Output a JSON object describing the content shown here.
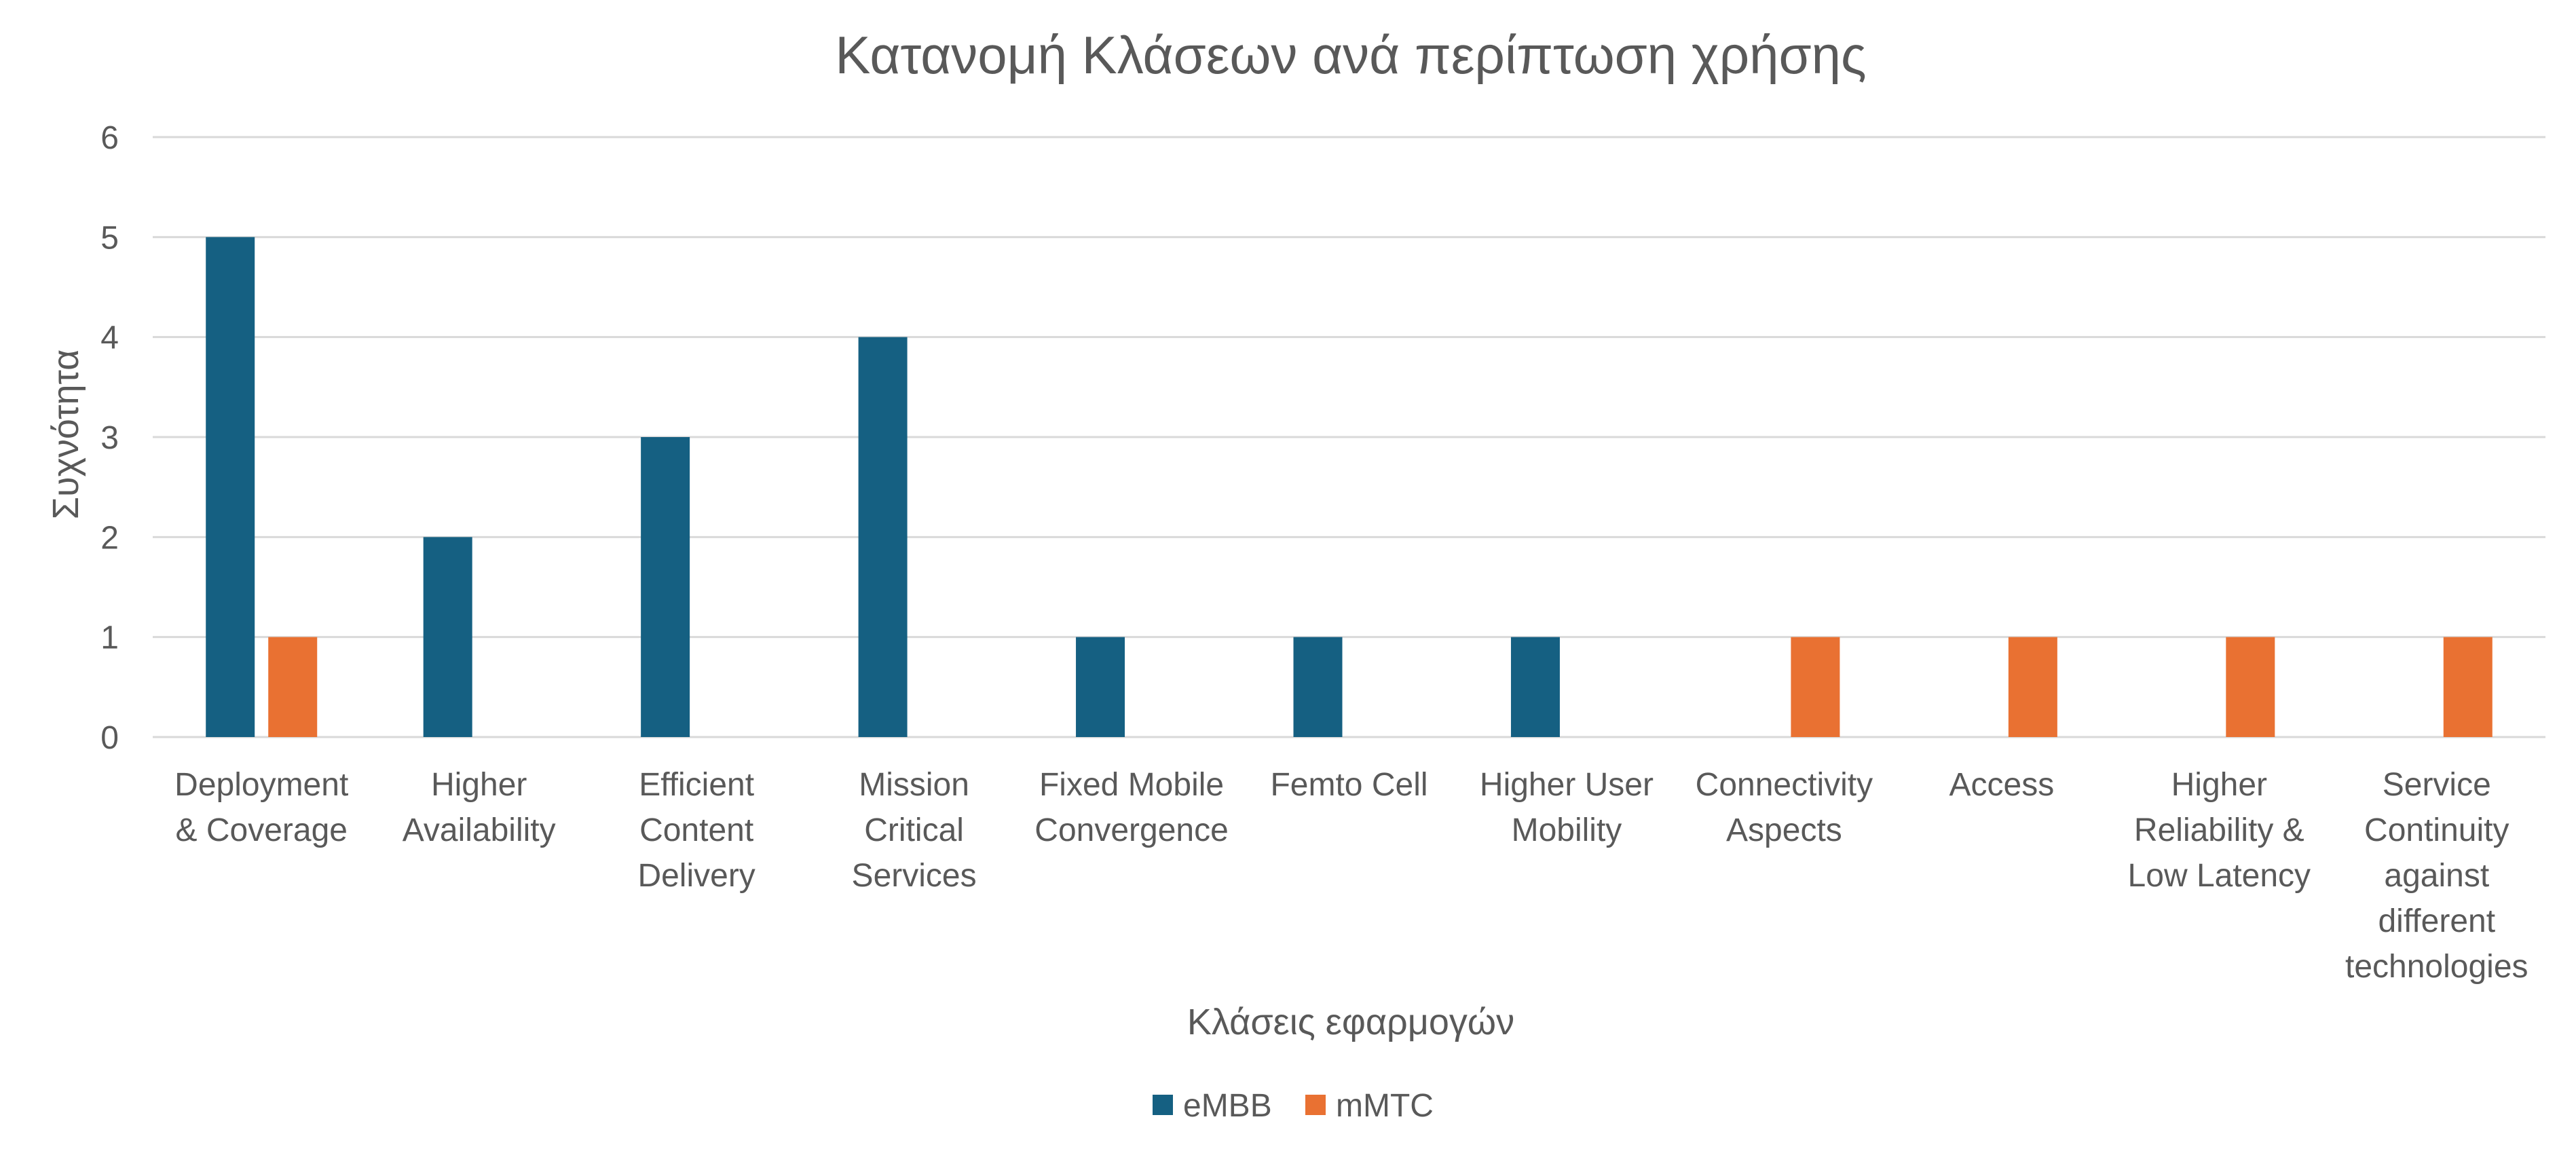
{
  "chart_data": {
    "type": "bar",
    "title": "Κατανομή Κλάσεων ανά περίπτωση χρήσης",
    "xlabel": "Κλάσεις εφαρμογών",
    "ylabel": "Συχνότητα",
    "ylim": [
      0,
      6
    ],
    "yticks": [
      "0",
      "1",
      "2",
      "3",
      "4",
      "5",
      "6"
    ],
    "grid": true,
    "legend_position": "bottom",
    "categories": [
      [
        "Deployment",
        "& Coverage"
      ],
      [
        "Higher",
        "Availability"
      ],
      [
        "Efficient",
        "Content",
        "Delivery"
      ],
      [
        "Mission",
        "Critical",
        "Services"
      ],
      [
        "Fixed Mobile",
        "Convergence"
      ],
      [
        "Femto Cell"
      ],
      [
        "Higher User",
        "Mobility"
      ],
      [
        "Connectivity",
        "Aspects"
      ],
      [
        "Access"
      ],
      [
        "Higher",
        "Reliability &",
        "Low Latency"
      ],
      [
        "Service",
        "Continuity",
        "against",
        "different",
        "technologies"
      ]
    ],
    "series": [
      {
        "name": "eMBB",
        "color": "#156082",
        "values": [
          5,
          2,
          3,
          4,
          1,
          1,
          1,
          0,
          0,
          0,
          0
        ]
      },
      {
        "name": "mMTC",
        "color": "#E97132",
        "values": [
          1,
          0,
          0,
          0,
          0,
          0,
          0,
          1,
          1,
          1,
          1
        ]
      }
    ]
  }
}
